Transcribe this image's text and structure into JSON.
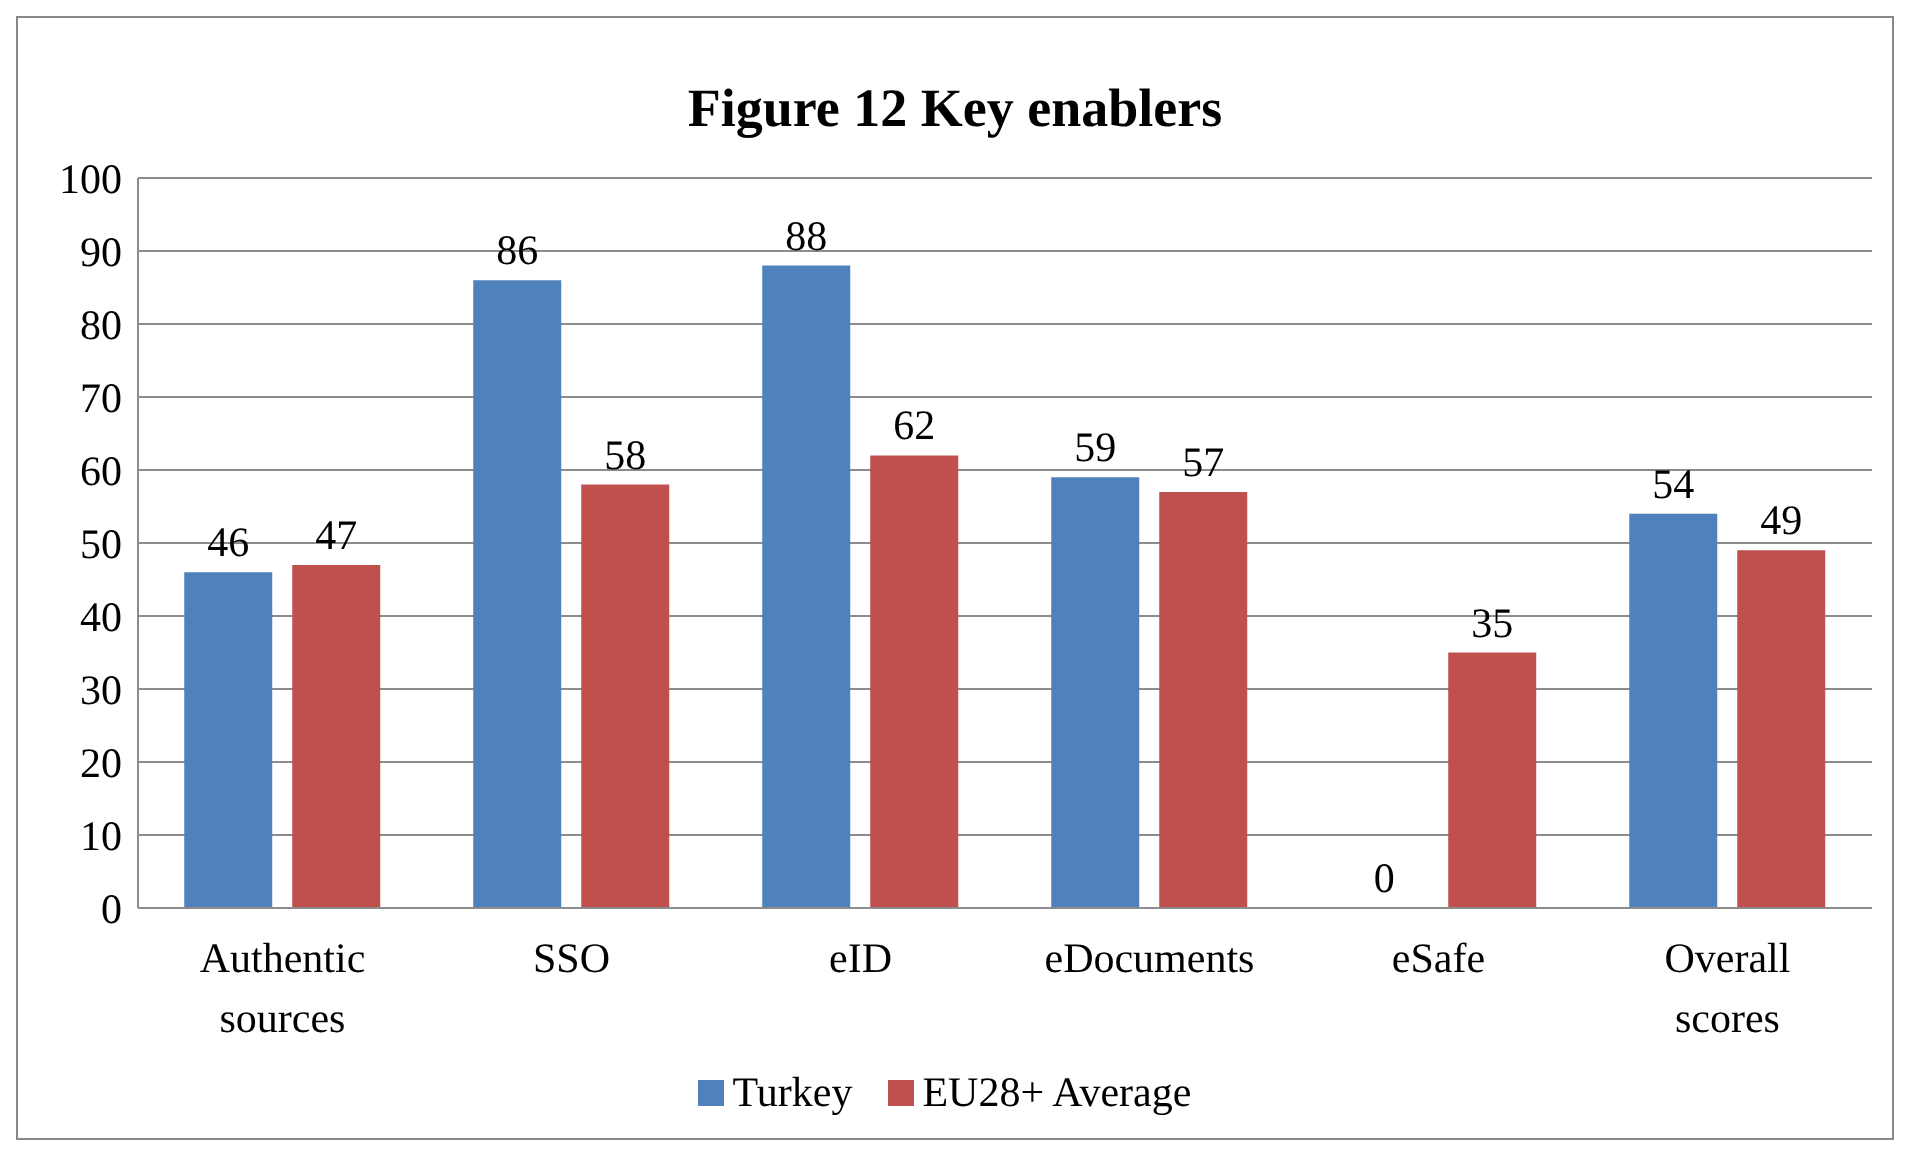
{
  "chart_data": {
    "type": "bar",
    "title": "Figure 12 Key enablers",
    "categories": [
      "Authentic sources",
      "SSO",
      "eID",
      "eDocuments",
      "eSafe",
      "Overall scores"
    ],
    "series": [
      {
        "name": "Turkey",
        "color": "#4f81bd",
        "values": [
          46,
          86,
          88,
          59,
          0,
          54
        ]
      },
      {
        "name": "EU28+ Average",
        "color": "#c0504d",
        "values": [
          47,
          58,
          62,
          57,
          35,
          49
        ]
      }
    ],
    "ylim": [
      0,
      100
    ],
    "yticks": [
      0,
      10,
      20,
      30,
      40,
      50,
      60,
      70,
      80,
      90,
      100
    ],
    "grid": "y",
    "legend": "bottom",
    "data_labels": true
  }
}
